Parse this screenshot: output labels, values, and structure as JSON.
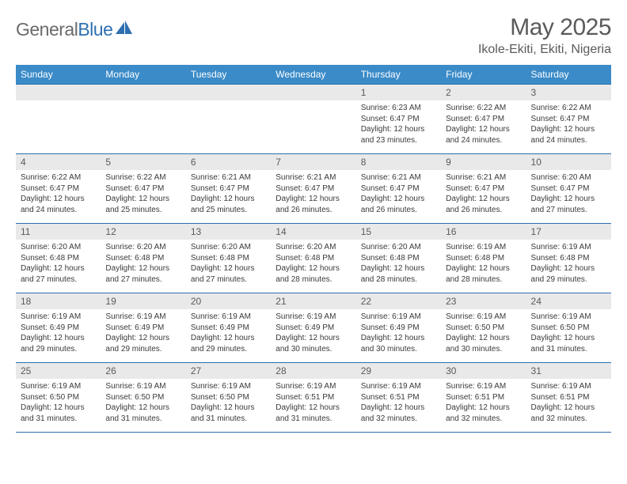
{
  "brand": {
    "part1": "General",
    "part2": "Blue"
  },
  "title": "May 2025",
  "location": "Ikole-Ekiti, Ekiti, Nigeria",
  "colors": {
    "header_bg": "#3b8bc8",
    "rule": "#2d6fb0",
    "daynum_bg": "#e9e9e9",
    "text": "#3a3a3a"
  },
  "day_headers": [
    "Sunday",
    "Monday",
    "Tuesday",
    "Wednesday",
    "Thursday",
    "Friday",
    "Saturday"
  ],
  "weeks": [
    [
      null,
      null,
      null,
      null,
      {
        "n": "1",
        "sr": "6:23 AM",
        "ss": "6:47 PM",
        "dl": "12 hours and 23 minutes."
      },
      {
        "n": "2",
        "sr": "6:22 AM",
        "ss": "6:47 PM",
        "dl": "12 hours and 24 minutes."
      },
      {
        "n": "3",
        "sr": "6:22 AM",
        "ss": "6:47 PM",
        "dl": "12 hours and 24 minutes."
      }
    ],
    [
      {
        "n": "4",
        "sr": "6:22 AM",
        "ss": "6:47 PM",
        "dl": "12 hours and 24 minutes."
      },
      {
        "n": "5",
        "sr": "6:22 AM",
        "ss": "6:47 PM",
        "dl": "12 hours and 25 minutes."
      },
      {
        "n": "6",
        "sr": "6:21 AM",
        "ss": "6:47 PM",
        "dl": "12 hours and 25 minutes."
      },
      {
        "n": "7",
        "sr": "6:21 AM",
        "ss": "6:47 PM",
        "dl": "12 hours and 26 minutes."
      },
      {
        "n": "8",
        "sr": "6:21 AM",
        "ss": "6:47 PM",
        "dl": "12 hours and 26 minutes."
      },
      {
        "n": "9",
        "sr": "6:21 AM",
        "ss": "6:47 PM",
        "dl": "12 hours and 26 minutes."
      },
      {
        "n": "10",
        "sr": "6:20 AM",
        "ss": "6:47 PM",
        "dl": "12 hours and 27 minutes."
      }
    ],
    [
      {
        "n": "11",
        "sr": "6:20 AM",
        "ss": "6:48 PM",
        "dl": "12 hours and 27 minutes."
      },
      {
        "n": "12",
        "sr": "6:20 AM",
        "ss": "6:48 PM",
        "dl": "12 hours and 27 minutes."
      },
      {
        "n": "13",
        "sr": "6:20 AM",
        "ss": "6:48 PM",
        "dl": "12 hours and 27 minutes."
      },
      {
        "n": "14",
        "sr": "6:20 AM",
        "ss": "6:48 PM",
        "dl": "12 hours and 28 minutes."
      },
      {
        "n": "15",
        "sr": "6:20 AM",
        "ss": "6:48 PM",
        "dl": "12 hours and 28 minutes."
      },
      {
        "n": "16",
        "sr": "6:19 AM",
        "ss": "6:48 PM",
        "dl": "12 hours and 28 minutes."
      },
      {
        "n": "17",
        "sr": "6:19 AM",
        "ss": "6:48 PM",
        "dl": "12 hours and 29 minutes."
      }
    ],
    [
      {
        "n": "18",
        "sr": "6:19 AM",
        "ss": "6:49 PM",
        "dl": "12 hours and 29 minutes."
      },
      {
        "n": "19",
        "sr": "6:19 AM",
        "ss": "6:49 PM",
        "dl": "12 hours and 29 minutes."
      },
      {
        "n": "20",
        "sr": "6:19 AM",
        "ss": "6:49 PM",
        "dl": "12 hours and 29 minutes."
      },
      {
        "n": "21",
        "sr": "6:19 AM",
        "ss": "6:49 PM",
        "dl": "12 hours and 30 minutes."
      },
      {
        "n": "22",
        "sr": "6:19 AM",
        "ss": "6:49 PM",
        "dl": "12 hours and 30 minutes."
      },
      {
        "n": "23",
        "sr": "6:19 AM",
        "ss": "6:50 PM",
        "dl": "12 hours and 30 minutes."
      },
      {
        "n": "24",
        "sr": "6:19 AM",
        "ss": "6:50 PM",
        "dl": "12 hours and 31 minutes."
      }
    ],
    [
      {
        "n": "25",
        "sr": "6:19 AM",
        "ss": "6:50 PM",
        "dl": "12 hours and 31 minutes."
      },
      {
        "n": "26",
        "sr": "6:19 AM",
        "ss": "6:50 PM",
        "dl": "12 hours and 31 minutes."
      },
      {
        "n": "27",
        "sr": "6:19 AM",
        "ss": "6:50 PM",
        "dl": "12 hours and 31 minutes."
      },
      {
        "n": "28",
        "sr": "6:19 AM",
        "ss": "6:51 PM",
        "dl": "12 hours and 31 minutes."
      },
      {
        "n": "29",
        "sr": "6:19 AM",
        "ss": "6:51 PM",
        "dl": "12 hours and 32 minutes."
      },
      {
        "n": "30",
        "sr": "6:19 AM",
        "ss": "6:51 PM",
        "dl": "12 hours and 32 minutes."
      },
      {
        "n": "31",
        "sr": "6:19 AM",
        "ss": "6:51 PM",
        "dl": "12 hours and 32 minutes."
      }
    ]
  ],
  "labels": {
    "sunrise": "Sunrise:",
    "sunset": "Sunset:",
    "daylight": "Daylight:"
  }
}
